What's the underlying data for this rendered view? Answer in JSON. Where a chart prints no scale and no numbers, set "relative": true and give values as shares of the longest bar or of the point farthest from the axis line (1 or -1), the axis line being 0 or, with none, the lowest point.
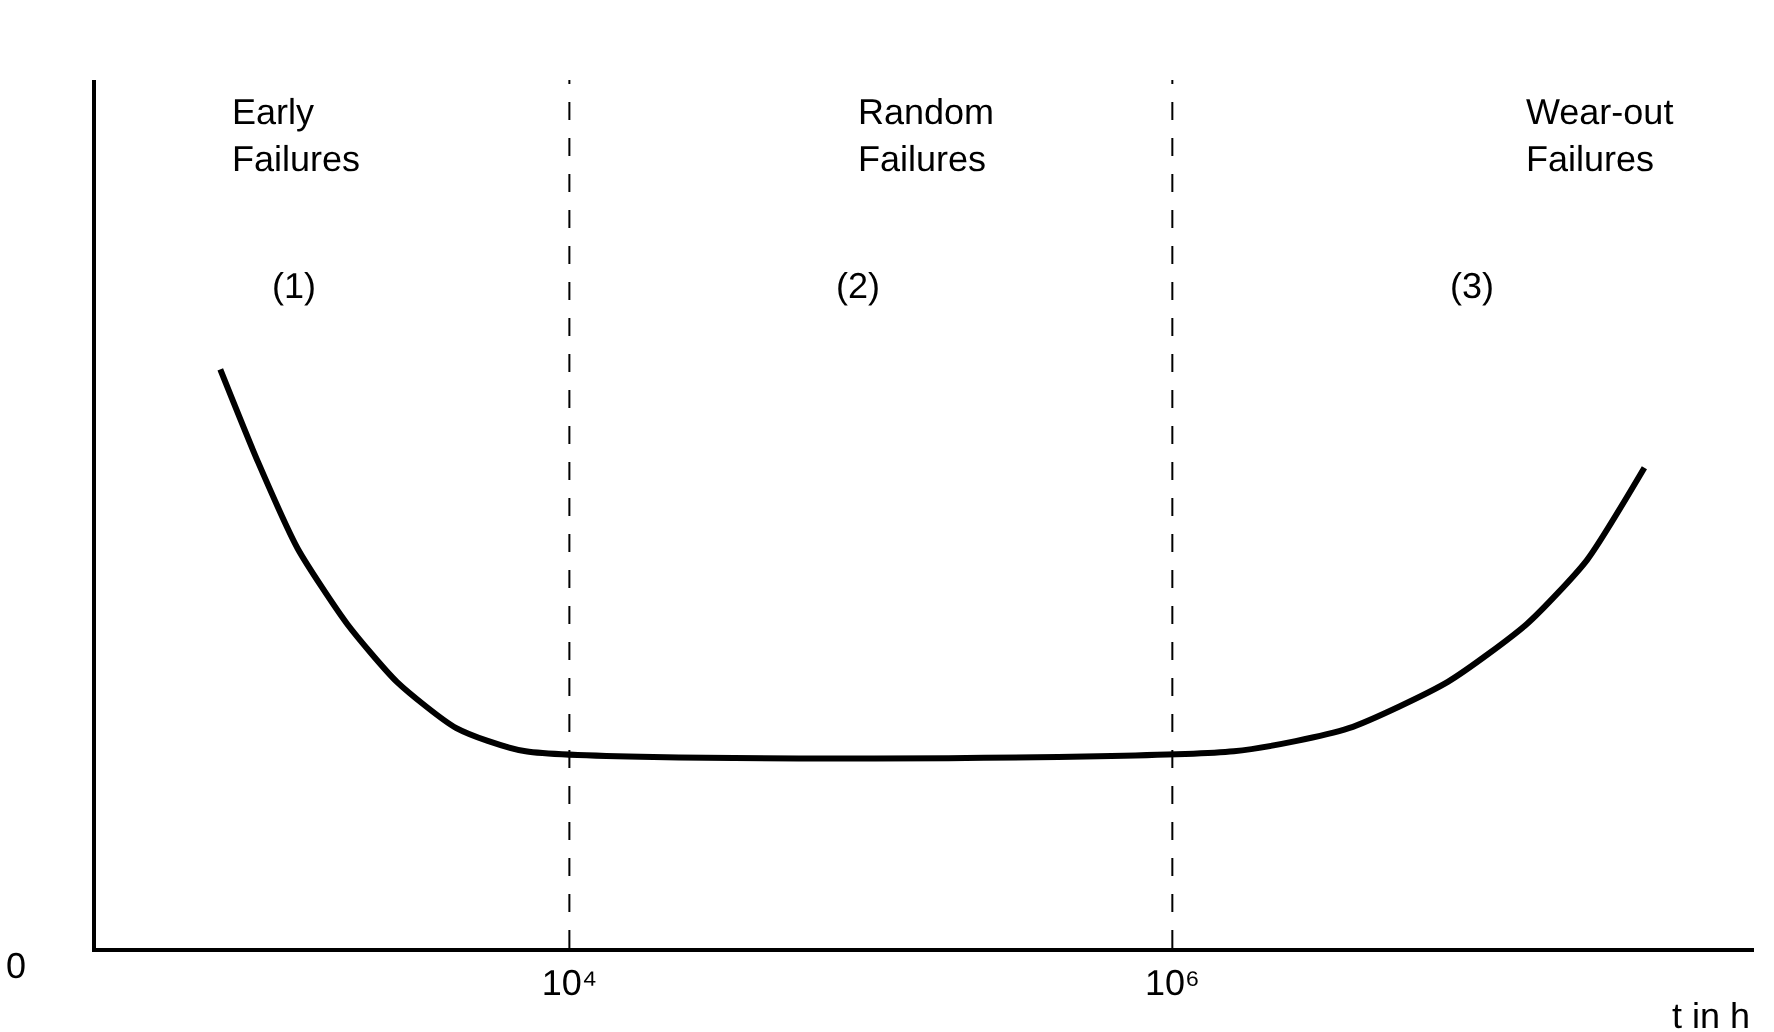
{
  "chart_data": {
    "type": "line",
    "relative": true,
    "log": "x",
    "xlabel": "t in h",
    "tick_labels": "x",
    "marker": "none",
    "line_style": "solid",
    "xlim": [
      269,
      85000000
    ],
    "xticks": [
      {
        "value": 10000,
        "label": "10⁴"
      },
      {
        "value": 1000000,
        "label": "10⁶"
      }
    ],
    "series": [
      {
        "color": "#000000",
        "x": [
          695,
          927,
          1256,
          1832,
          2678,
          4217,
          7161,
          1600000,
          3850000,
          8200000,
          15000000,
          23700000,
          36800000
        ],
        "values": [
          1.0,
          0.84,
          0.69,
          0.56,
          0.46,
          0.38,
          0.34,
          0.34,
          0.38,
          0.46,
          0.56,
          0.67,
          0.83
        ]
      }
    ],
    "ref_lines": [
      {
        "axis": "x",
        "value": 10000,
        "line_style": "dashed",
        "color": "#000000"
      },
      {
        "axis": "x",
        "value": 1000000,
        "line_style": "dashed",
        "color": "#000000"
      }
    ],
    "annotations": [
      "Early\nFailures",
      "(1)",
      "Random\nFailures",
      "(2)",
      "Wear-out\nFailures",
      "(3)",
      "0"
    ]
  }
}
